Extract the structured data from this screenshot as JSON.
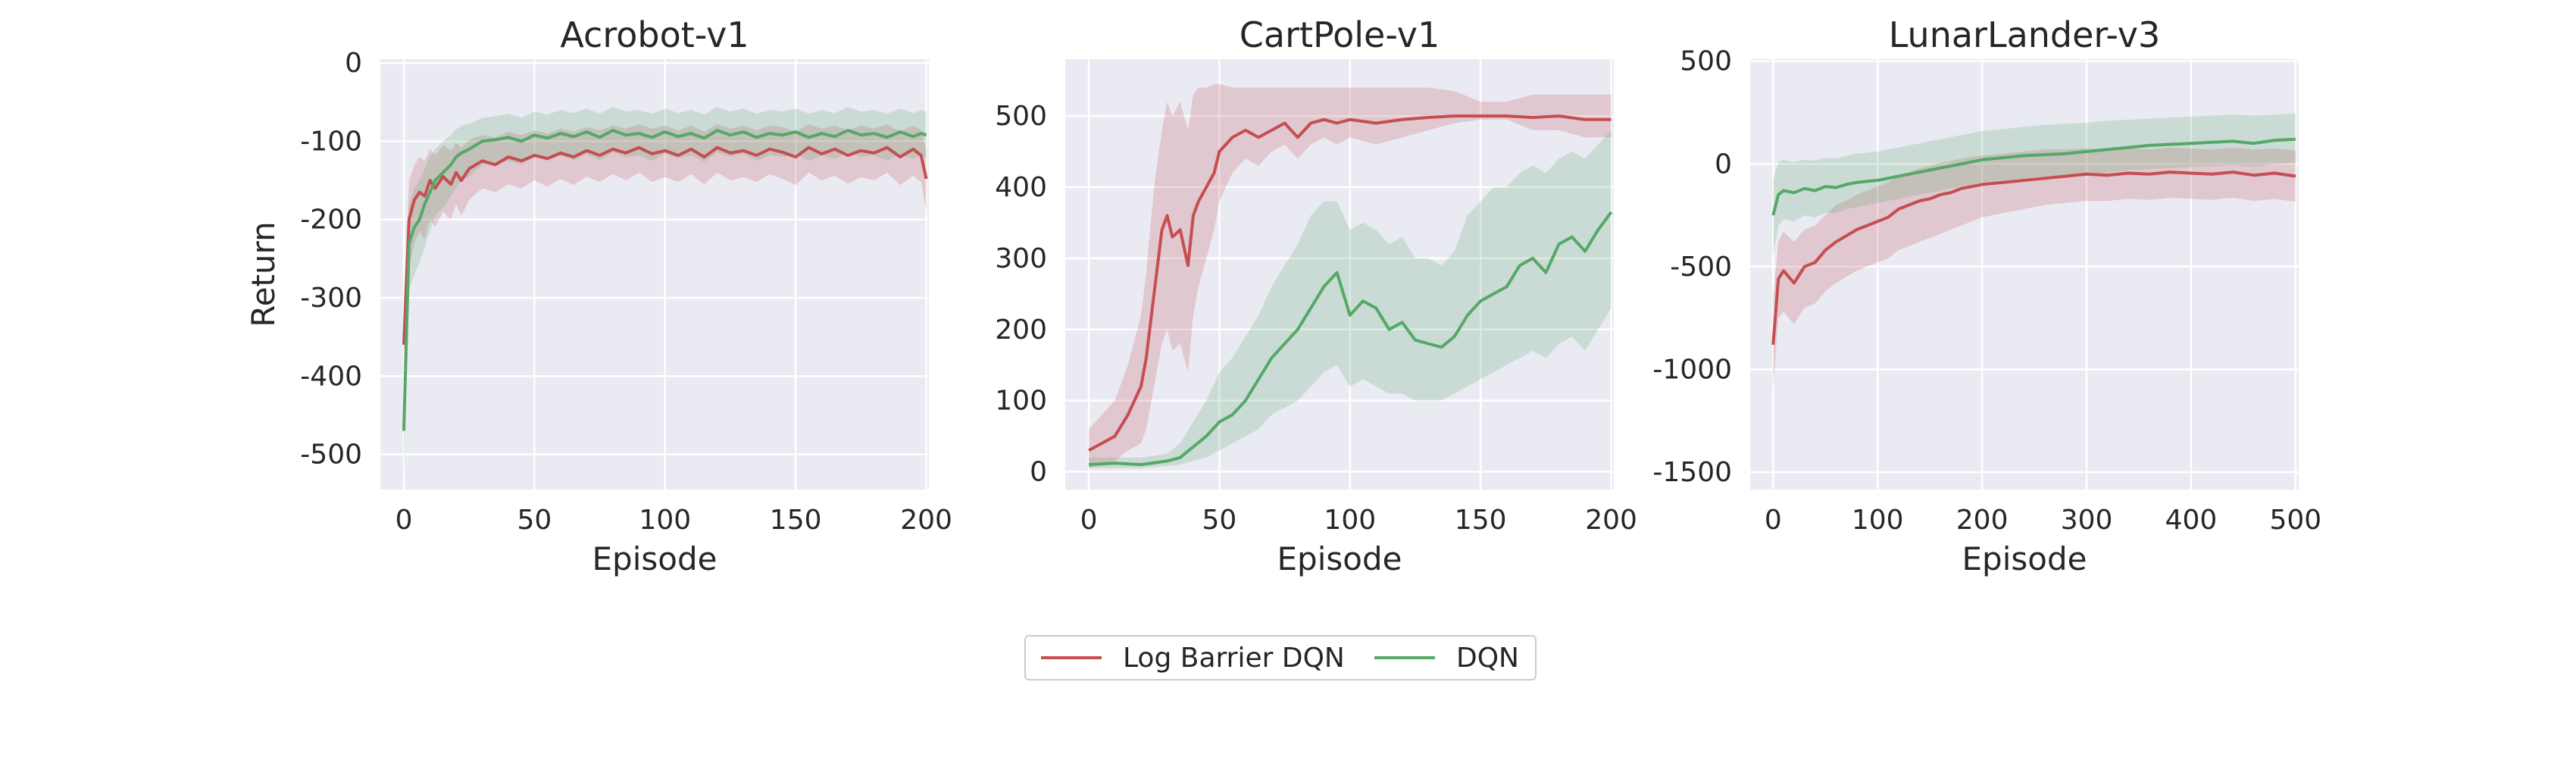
{
  "colors": {
    "log_barrier": "#c44e52",
    "dqn": "#55a868",
    "plot_bg": "#eaeaf2",
    "grid": "#ffffff"
  },
  "legend": {
    "entries": [
      {
        "label": "Log Barrier DQN",
        "color": "#c44e52"
      },
      {
        "label": "DQN",
        "color": "#55a868"
      }
    ]
  },
  "chart_data": [
    {
      "type": "line",
      "title": "Acrobot-v1",
      "xlabel": "Episode",
      "ylabel": "Return",
      "xlim": [
        -9,
        201
      ],
      "ylim": [
        -545,
        5
      ],
      "xticks": [
        0,
        50,
        100,
        150,
        200
      ],
      "yticks": [
        0,
        -100,
        -200,
        -300,
        -400,
        -500
      ],
      "series": [
        {
          "name": "Log Barrier DQN",
          "color": "#c44e52",
          "x": [
            0,
            2,
            4,
            6,
            8,
            10,
            12,
            15,
            18,
            20,
            22,
            25,
            30,
            35,
            40,
            45,
            50,
            55,
            60,
            65,
            70,
            75,
            80,
            85,
            90,
            95,
            100,
            105,
            110,
            115,
            120,
            125,
            130,
            135,
            140,
            145,
            150,
            155,
            160,
            165,
            170,
            175,
            180,
            185,
            190,
            195,
            198,
            200
          ],
          "y": [
            -360,
            -200,
            -175,
            -165,
            -170,
            -150,
            -160,
            -145,
            -155,
            -140,
            -150,
            -135,
            -125,
            -130,
            -120,
            -125,
            -118,
            -122,
            -115,
            -120,
            -112,
            -118,
            -110,
            -115,
            -108,
            -116,
            -112,
            -118,
            -110,
            -120,
            -108,
            -115,
            -112,
            -118,
            -110,
            -114,
            -120,
            -108,
            -116,
            -110,
            -118,
            -112,
            -115,
            -108,
            -120,
            -110,
            -118,
            -148
          ],
          "lower": [
            -420,
            -260,
            -230,
            -215,
            -225,
            -200,
            -210,
            -190,
            -200,
            -180,
            -195,
            -175,
            -160,
            -165,
            -155,
            -160,
            -150,
            -158,
            -148,
            -156,
            -145,
            -152,
            -142,
            -150,
            -140,
            -152,
            -146,
            -152,
            -142,
            -155,
            -140,
            -150,
            -146,
            -152,
            -142,
            -148,
            -156,
            -140,
            -150,
            -144,
            -154,
            -146,
            -150,
            -140,
            -156,
            -144,
            -152,
            -190
          ],
          "upper": [
            -300,
            -150,
            -130,
            -120,
            -125,
            -110,
            -118,
            -105,
            -112,
            -102,
            -108,
            -98,
            -92,
            -95,
            -88,
            -92,
            -86,
            -90,
            -84,
            -88,
            -82,
            -86,
            -80,
            -84,
            -78,
            -84,
            -80,
            -86,
            -80,
            -88,
            -78,
            -84,
            -80,
            -86,
            -80,
            -82,
            -88,
            -78,
            -84,
            -80,
            -86,
            -80,
            -84,
            -78,
            -88,
            -80,
            -86,
            -110
          ]
        },
        {
          "name": "DQN",
          "color": "#55a868",
          "x": [
            0,
            2,
            4,
            6,
            8,
            10,
            12,
            15,
            18,
            20,
            22,
            25,
            30,
            35,
            40,
            45,
            50,
            55,
            60,
            65,
            70,
            75,
            80,
            85,
            90,
            95,
            100,
            105,
            110,
            115,
            120,
            125,
            130,
            135,
            140,
            145,
            150,
            155,
            160,
            165,
            170,
            175,
            180,
            185,
            190,
            195,
            198,
            200
          ],
          "y": [
            -470,
            -230,
            -210,
            -200,
            -180,
            -165,
            -150,
            -140,
            -130,
            -120,
            -115,
            -110,
            -100,
            -98,
            -95,
            -100,
            -92,
            -96,
            -90,
            -94,
            -88,
            -95,
            -86,
            -92,
            -90,
            -95,
            -88,
            -94,
            -90,
            -96,
            -86,
            -92,
            -88,
            -95,
            -90,
            -92,
            -88,
            -95,
            -90,
            -94,
            -86,
            -92,
            -90,
            -95,
            -88,
            -94,
            -90,
            -92
          ],
          "lower": [
            -530,
            -290,
            -270,
            -255,
            -235,
            -215,
            -195,
            -185,
            -170,
            -160,
            -150,
            -145,
            -130,
            -128,
            -125,
            -130,
            -120,
            -125,
            -118,
            -124,
            -116,
            -125,
            -114,
            -120,
            -118,
            -125,
            -116,
            -122,
            -118,
            -126,
            -114,
            -120,
            -116,
            -125,
            -118,
            -120,
            -116,
            -125,
            -118,
            -122,
            -114,
            -120,
            -118,
            -125,
            -116,
            -122,
            -118,
            -122
          ],
          "upper": [
            -420,
            -180,
            -160,
            -150,
            -135,
            -120,
            -110,
            -100,
            -92,
            -85,
            -80,
            -78,
            -70,
            -68,
            -65,
            -70,
            -62,
            -66,
            -60,
            -64,
            -58,
            -65,
            -56,
            -62,
            -60,
            -65,
            -58,
            -64,
            -60,
            -66,
            -56,
            -62,
            -58,
            -65,
            -60,
            -62,
            -58,
            -65,
            -60,
            -64,
            -56,
            -62,
            -60,
            -65,
            -58,
            -64,
            -60,
            -62
          ]
        }
      ]
    },
    {
      "type": "line",
      "title": "CartPole-v1",
      "xlabel": "Episode",
      "ylabel": "",
      "xlim": [
        -9,
        201
      ],
      "ylim": [
        -25,
        580
      ],
      "xticks": [
        0,
        50,
        100,
        150,
        200
      ],
      "yticks": [
        0,
        100,
        200,
        300,
        400,
        500
      ],
      "series": [
        {
          "name": "Log Barrier DQN",
          "color": "#c44e52",
          "x": [
            0,
            5,
            10,
            15,
            20,
            22,
            25,
            28,
            30,
            32,
            35,
            38,
            40,
            42,
            45,
            48,
            50,
            55,
            60,
            65,
            70,
            75,
            80,
            85,
            90,
            95,
            100,
            110,
            120,
            130,
            140,
            150,
            160,
            170,
            180,
            190,
            200
          ],
          "y": [
            30,
            40,
            50,
            80,
            120,
            160,
            250,
            340,
            360,
            330,
            340,
            290,
            360,
            380,
            400,
            420,
            450,
            470,
            480,
            470,
            480,
            490,
            470,
            490,
            495,
            490,
            495,
            490,
            495,
            498,
            500,
            500,
            500,
            498,
            500,
            495,
            495
          ],
          "lower": [
            5,
            10,
            15,
            30,
            40,
            60,
            120,
            180,
            200,
            170,
            180,
            140,
            220,
            260,
            300,
            340,
            380,
            420,
            440,
            430,
            450,
            460,
            440,
            460,
            470,
            460,
            470,
            460,
            470,
            480,
            490,
            495,
            495,
            480,
            480,
            470,
            470
          ],
          "upper": [
            60,
            80,
            100,
            150,
            220,
            280,
            400,
            480,
            520,
            500,
            520,
            480,
            530,
            540,
            540,
            545,
            545,
            540,
            540,
            540,
            540,
            540,
            540,
            540,
            540,
            540,
            540,
            540,
            540,
            540,
            535,
            520,
            520,
            530,
            530,
            530,
            530
          ]
        },
        {
          "name": "DQN",
          "color": "#55a868",
          "x": [
            0,
            10,
            20,
            30,
            35,
            40,
            45,
            50,
            55,
            60,
            65,
            70,
            75,
            80,
            85,
            90,
            95,
            100,
            105,
            110,
            115,
            120,
            125,
            130,
            135,
            140,
            145,
            150,
            155,
            160,
            165,
            170,
            175,
            180,
            185,
            190,
            195,
            200
          ],
          "y": [
            10,
            12,
            10,
            15,
            20,
            35,
            50,
            70,
            80,
            100,
            130,
            160,
            180,
            200,
            230,
            260,
            280,
            220,
            240,
            230,
            200,
            210,
            185,
            180,
            175,
            190,
            220,
            240,
            250,
            260,
            290,
            300,
            280,
            320,
            330,
            310,
            340,
            365
          ],
          "lower": [
            5,
            5,
            5,
            8,
            10,
            15,
            20,
            30,
            40,
            50,
            60,
            80,
            90,
            100,
            120,
            140,
            150,
            120,
            130,
            120,
            110,
            110,
            100,
            100,
            100,
            110,
            120,
            130,
            140,
            150,
            160,
            170,
            160,
            180,
            190,
            170,
            200,
            230
          ],
          "upper": [
            20,
            20,
            20,
            25,
            40,
            70,
            100,
            140,
            160,
            190,
            220,
            260,
            290,
            320,
            360,
            380,
            380,
            340,
            350,
            340,
            320,
            330,
            300,
            300,
            290,
            310,
            360,
            380,
            400,
            400,
            420,
            430,
            420,
            440,
            450,
            440,
            460,
            480
          ]
        }
      ]
    },
    {
      "type": "line",
      "title": "LunarLander-v3",
      "xlabel": "Episode",
      "ylabel": "",
      "xlim": [
        -22,
        503
      ],
      "ylim": [
        -1585,
        510
      ],
      "xticks": [
        0,
        100,
        200,
        300,
        400,
        500
      ],
      "yticks": [
        500,
        0,
        -500,
        -1000,
        -1500
      ],
      "series": [
        {
          "name": "Log Barrier DQN",
          "color": "#c44e52",
          "x": [
            0,
            5,
            10,
            20,
            30,
            40,
            50,
            60,
            70,
            80,
            90,
            100,
            110,
            120,
            130,
            140,
            150,
            160,
            170,
            180,
            190,
            200,
            220,
            240,
            260,
            280,
            300,
            320,
            340,
            360,
            380,
            400,
            420,
            440,
            460,
            480,
            500
          ],
          "y": [
            -880,
            -560,
            -520,
            -580,
            -500,
            -480,
            -420,
            -380,
            -350,
            -320,
            -300,
            -280,
            -260,
            -220,
            -200,
            -180,
            -170,
            -150,
            -140,
            -120,
            -110,
            -100,
            -90,
            -80,
            -70,
            -60,
            -50,
            -55,
            -45,
            -50,
            -40,
            -45,
            -50,
            -40,
            -55,
            -45,
            -60
          ],
          "lower": [
            -1100,
            -750,
            -720,
            -780,
            -700,
            -680,
            -620,
            -580,
            -550,
            -520,
            -500,
            -480,
            -460,
            -420,
            -400,
            -380,
            -360,
            -340,
            -320,
            -300,
            -280,
            -260,
            -240,
            -220,
            -200,
            -190,
            -180,
            -180,
            -170,
            -175,
            -165,
            -170,
            -175,
            -165,
            -180,
            -170,
            -185
          ],
          "upper": [
            -650,
            -380,
            -330,
            -380,
            -320,
            -300,
            -250,
            -200,
            -180,
            -150,
            -130,
            -110,
            -90,
            -60,
            -40,
            -20,
            -10,
            5,
            15,
            25,
            35,
            40,
            50,
            60,
            70,
            70,
            75,
            70,
            75,
            70,
            80,
            75,
            70,
            80,
            70,
            75,
            65
          ]
        },
        {
          "name": "DQN",
          "color": "#55a868",
          "x": [
            0,
            5,
            10,
            20,
            30,
            40,
            50,
            60,
            70,
            80,
            90,
            100,
            110,
            120,
            130,
            140,
            150,
            160,
            170,
            180,
            190,
            200,
            220,
            240,
            260,
            280,
            300,
            320,
            340,
            360,
            380,
            400,
            420,
            440,
            460,
            480,
            500
          ],
          "y": [
            -250,
            -150,
            -130,
            -140,
            -120,
            -130,
            -110,
            -115,
            -100,
            -90,
            -85,
            -80,
            -70,
            -60,
            -50,
            -40,
            -30,
            -20,
            -10,
            0,
            10,
            20,
            30,
            40,
            45,
            50,
            60,
            70,
            80,
            90,
            95,
            100,
            105,
            110,
            100,
            115,
            120
          ],
          "lower": [
            -450,
            -300,
            -270,
            -280,
            -250,
            -260,
            -240,
            -240,
            -220,
            -210,
            -200,
            -190,
            -180,
            -170,
            -160,
            -150,
            -140,
            -130,
            -120,
            -110,
            -100,
            -90,
            -80,
            -70,
            -60,
            -55,
            -50,
            -40,
            -30,
            -25,
            -20,
            -15,
            -10,
            -5,
            -15,
            0,
            5
          ],
          "upper": [
            -80,
            10,
            20,
            10,
            20,
            15,
            30,
            25,
            40,
            50,
            55,
            60,
            70,
            80,
            90,
            100,
            110,
            120,
            130,
            140,
            150,
            160,
            170,
            180,
            190,
            195,
            200,
            210,
            215,
            220,
            225,
            230,
            235,
            240,
            235,
            240,
            245
          ]
        }
      ]
    }
  ]
}
